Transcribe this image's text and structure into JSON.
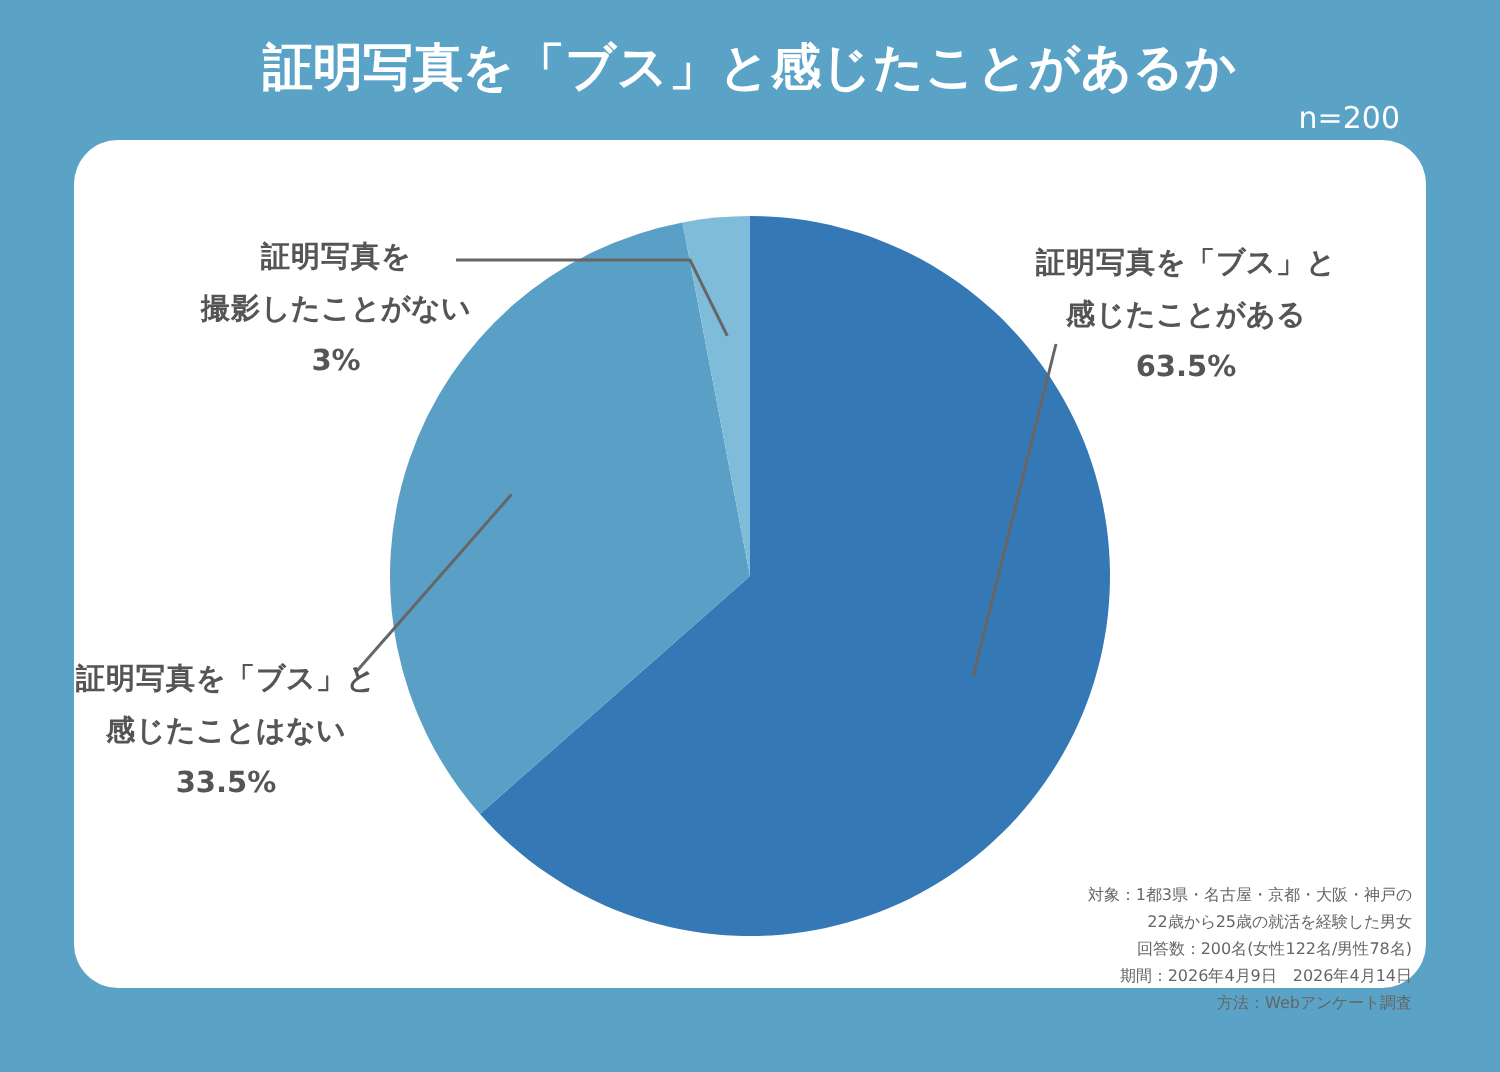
{
  "chart_data": {
    "type": "pie",
    "title": "証明写真を「ブス」と感じたことがあるか",
    "subtitle": "n=200",
    "categories": [
      "証明写真を「ブス」と感じたことがある",
      "証明写真を「ブス」と感じたことはない",
      "証明写真を撮影したことがない"
    ],
    "values": [
      63.5,
      33.5,
      3
    ],
    "value_labels": [
      "63.5%",
      "33.5%",
      "3%"
    ],
    "colors": [
      "#3479b6",
      "#5a9fc6",
      "#7fbcd9"
    ],
    "annotations": [
      "対象：1都3県・名古屋・京都・大阪・神戸の",
      "22歳から25歳の就活を経験した男女",
      "回答数：200名(女性122名/男性78名)",
      "期間：2026年4月9日　2026年4月14日",
      "方法：Webアンケート調査"
    ]
  }
}
